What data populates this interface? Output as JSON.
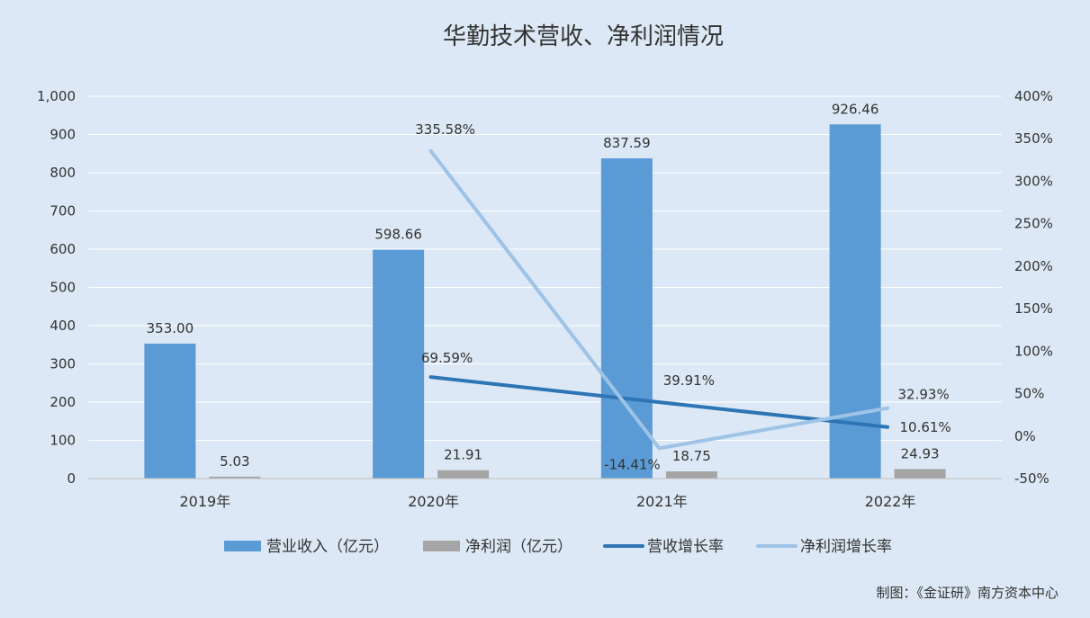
{
  "chart_data": {
    "type": "bar",
    "title": "华勤技术营收、净利润情况",
    "categories": [
      "2019年",
      "2020年",
      "2021年",
      "2022年"
    ],
    "ylim": [
      0,
      1000
    ],
    "y_ticks": [
      "0",
      "100",
      "200",
      "300",
      "400",
      "500",
      "600",
      "700",
      "800",
      "900",
      "1,000"
    ],
    "y2lim": [
      -50,
      400
    ],
    "y2_ticks": [
      "-50%",
      "0%",
      "50%",
      "100%",
      "150%",
      "200%",
      "250%",
      "300%",
      "350%",
      "400%"
    ],
    "grid": true,
    "legend_position": "bottom",
    "series": [
      {
        "name": "营业收入（亿元）",
        "kind": "bar",
        "axis": "left",
        "color": "#5b9bd5",
        "values": [
          353.0,
          598.66,
          837.59,
          926.46
        ],
        "labels": [
          "353.00",
          "598.66",
          "837.59",
          "926.46"
        ]
      },
      {
        "name": "净利润（亿元）",
        "kind": "bar",
        "axis": "left",
        "color": "#a5a5a5",
        "values": [
          5.03,
          21.91,
          18.75,
          24.93
        ],
        "labels": [
          "5.03",
          "21.91",
          "18.75",
          "24.93"
        ]
      },
      {
        "name": "营收增长率",
        "kind": "line",
        "axis": "right",
        "color": "#2e75b6",
        "values": [
          null,
          69.59,
          39.91,
          10.61
        ],
        "labels": [
          "",
          "69.59%",
          "39.91%",
          "10.61%"
        ]
      },
      {
        "name": "净利润增长率",
        "kind": "line",
        "axis": "right",
        "color": "#9dc3e6",
        "values": [
          null,
          335.58,
          -14.41,
          32.93
        ],
        "labels": [
          "",
          "335.58%",
          "-14.41%",
          "32.93%"
        ]
      }
    ]
  },
  "source_note": "制图：《金证研》南方资本中心",
  "colors": {
    "background": "#dce8f5",
    "gridline": "#ffffff",
    "text": "#333333"
  }
}
